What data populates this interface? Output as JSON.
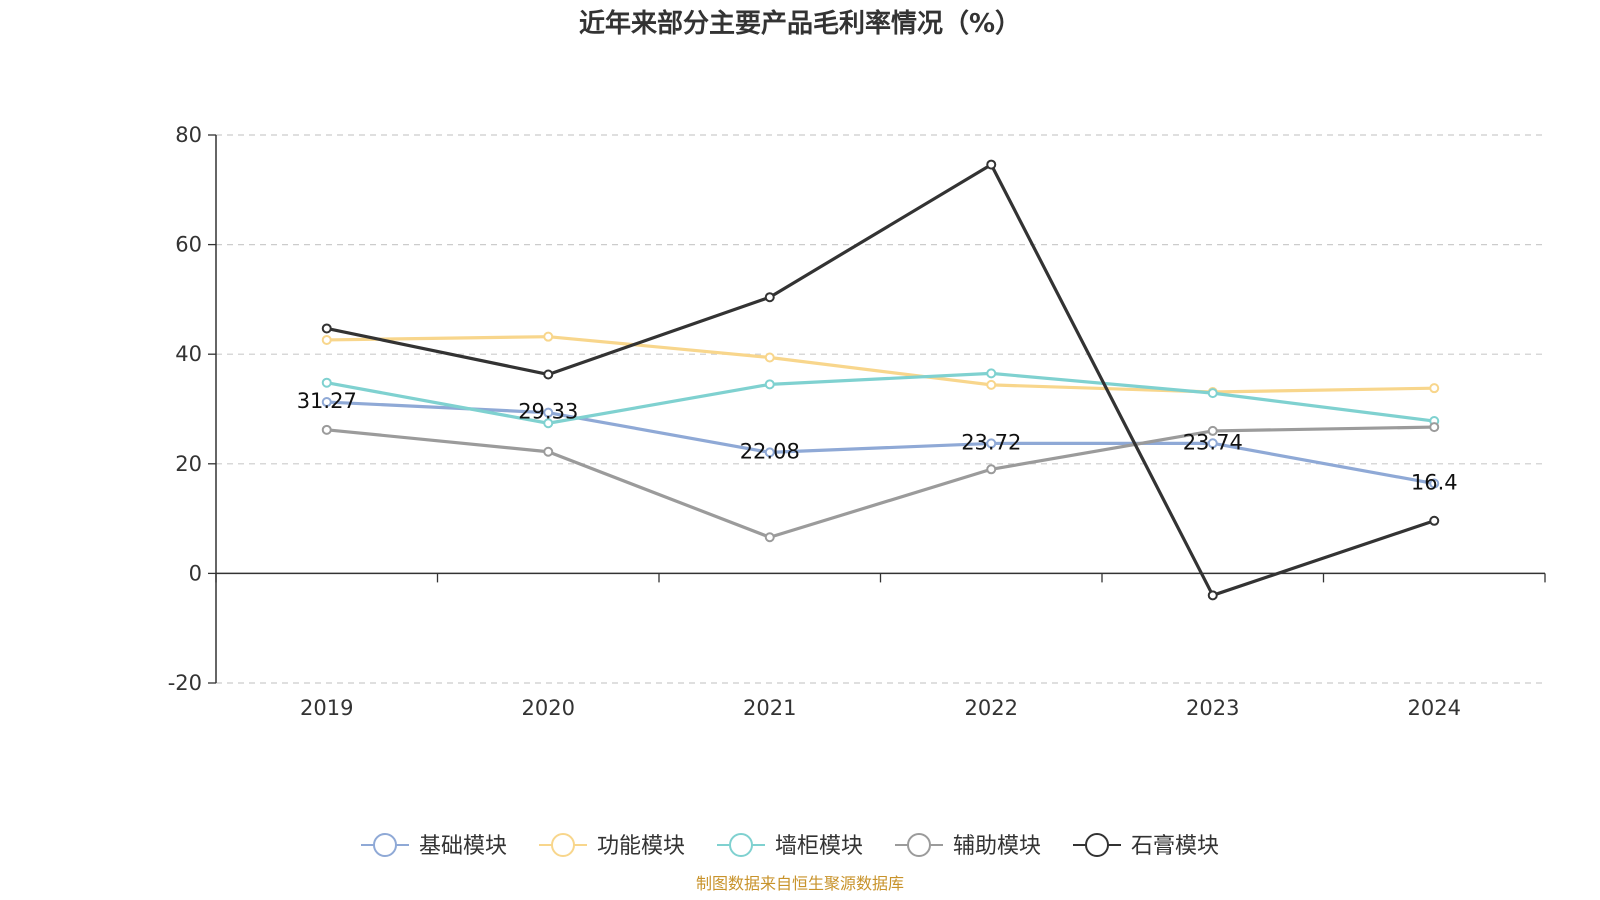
{
  "chart_data": {
    "type": "line",
    "title": "近年来部分主要产品毛利率情况（%）",
    "source": "制图数据来自恒生聚源数据库",
    "x": [
      "2019",
      "2020",
      "2021",
      "2022",
      "2023",
      "2024"
    ],
    "ylim": [
      -20,
      80
    ],
    "yticks": [
      "80",
      "60",
      "40",
      "20",
      "0",
      "-20"
    ],
    "grid": true,
    "legend_position": "bottom-center",
    "series": [
      {
        "name": "基础模块",
        "color": "#8fa9d6",
        "values": [
          31.27,
          29.33,
          22.08,
          23.72,
          23.74,
          16.4
        ],
        "labels": [
          "31.27",
          "29.33",
          "22.08",
          "23.72",
          "23.74",
          "16.4"
        ]
      },
      {
        "name": "功能模块",
        "color": "#f8d68c",
        "values": [
          42.6,
          43.2,
          39.4,
          34.4,
          33.1,
          33.8
        ]
      },
      {
        "name": "墙柜模块",
        "color": "#7fd1d0",
        "values": [
          34.8,
          27.4,
          34.5,
          36.5,
          32.9,
          27.8
        ]
      },
      {
        "name": "辅助模块",
        "color": "#9b9b9b",
        "values": [
          26.2,
          22.2,
          6.6,
          19.0,
          26.0,
          26.7
        ]
      },
      {
        "name": "石膏模块",
        "color": "#333333",
        "values": [
          44.7,
          36.3,
          50.4,
          74.6,
          -4.0,
          9.6
        ]
      }
    ]
  }
}
